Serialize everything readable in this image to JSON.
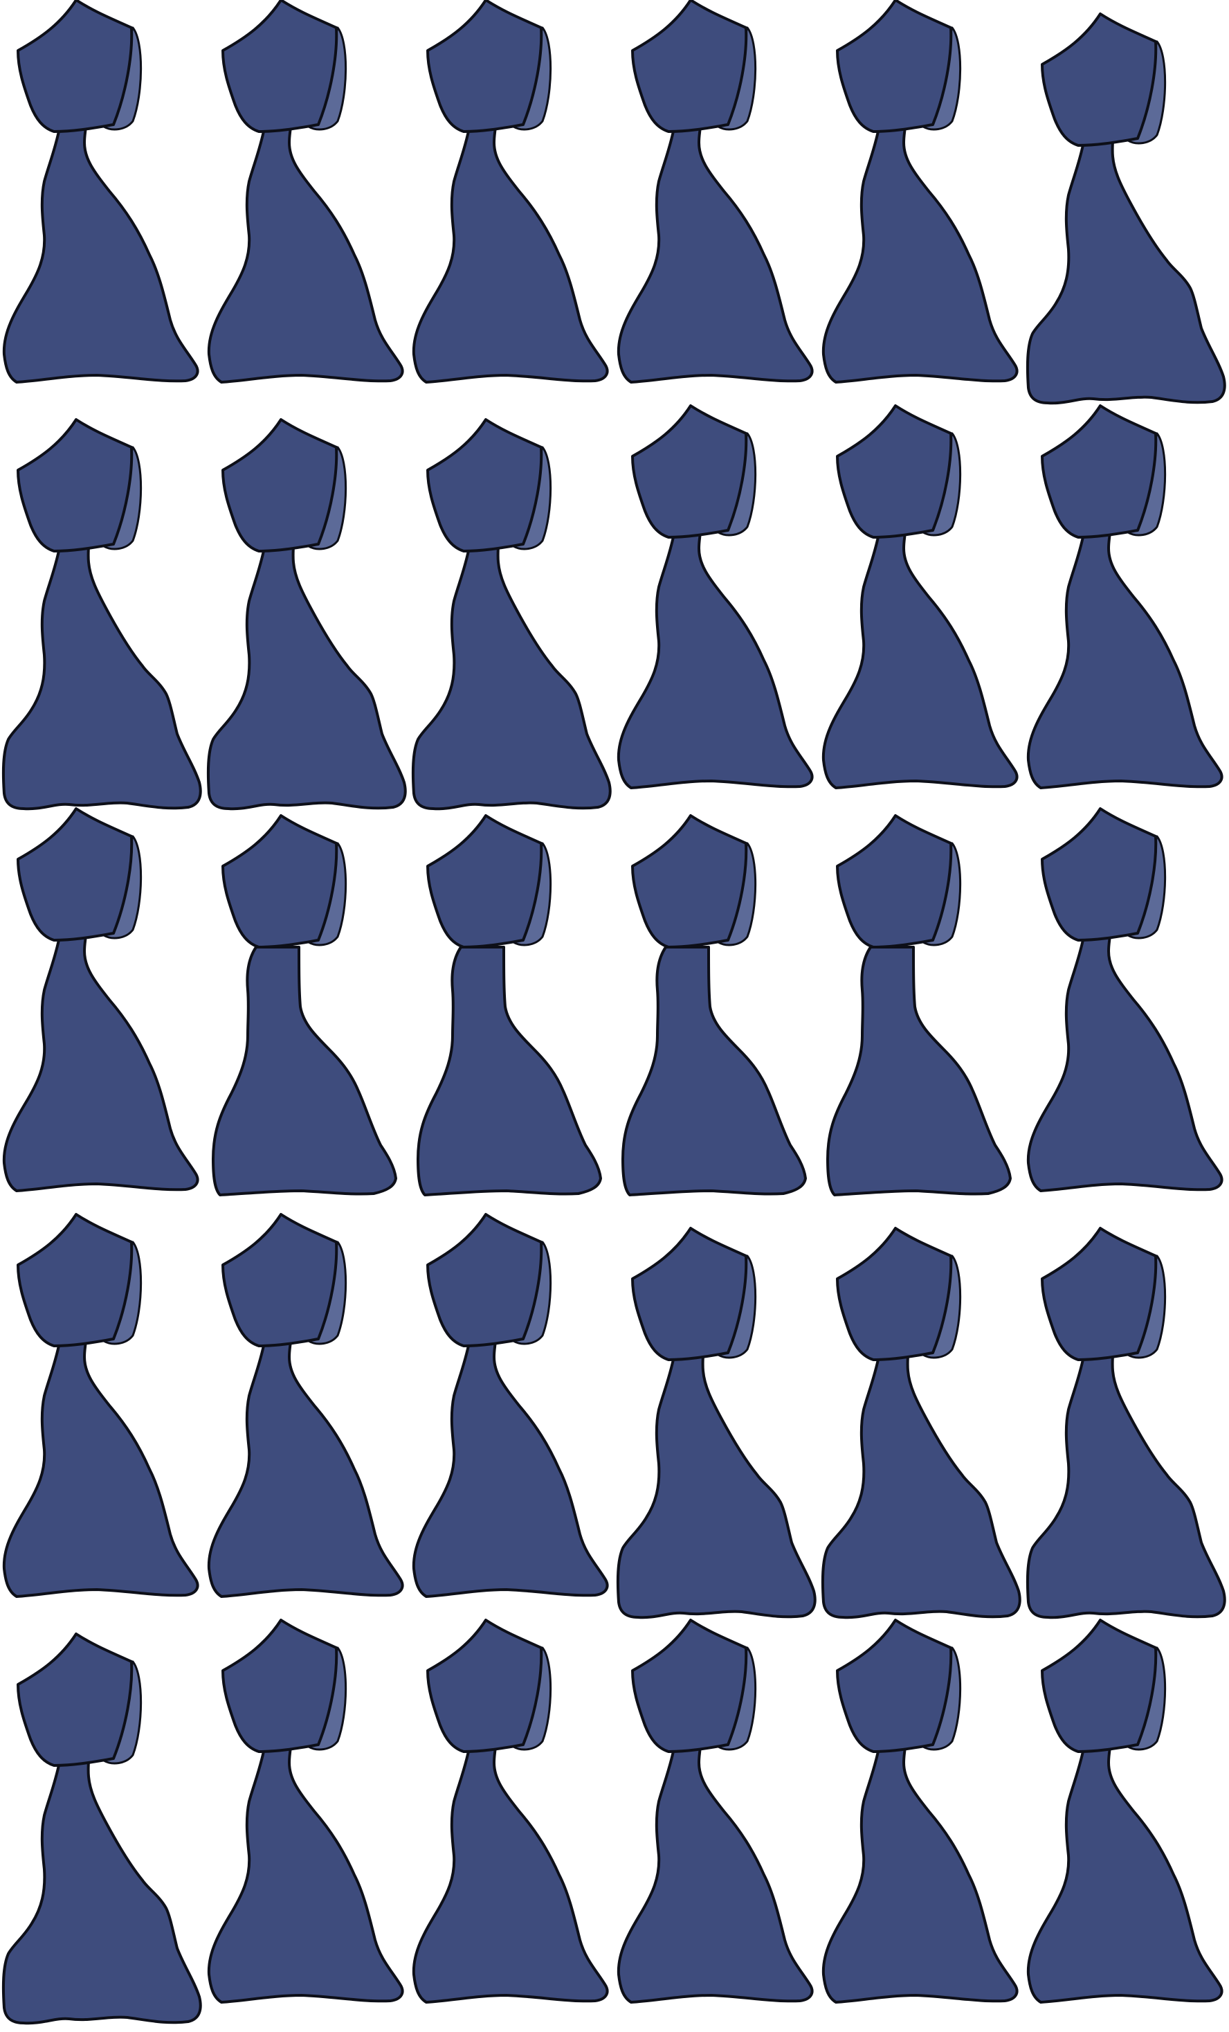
{
  "sheet": {
    "background_color": "#ffffff",
    "rows": 5,
    "columns": 6,
    "figure_icon": "bottle-figure-icon",
    "figure_count": 30
  },
  "colors": {
    "body_fill": "#3e4c7d",
    "shade_fill": "#5c6a98",
    "outline": "#0d0f18"
  },
  "rows": [
    {
      "variants": [
        "a",
        "a",
        "a",
        "a",
        "a",
        "b"
      ]
    },
    {
      "variants": [
        "b",
        "b",
        "b",
        "a",
        "a",
        "a"
      ]
    },
    {
      "variants": [
        "a",
        "c",
        "c",
        "c",
        "c",
        "a"
      ]
    },
    {
      "variants": [
        "a",
        "a",
        "a",
        "b",
        "b",
        "b"
      ]
    },
    {
      "variants": [
        "b",
        "a",
        "a",
        "a",
        "a",
        "a"
      ]
    }
  ]
}
